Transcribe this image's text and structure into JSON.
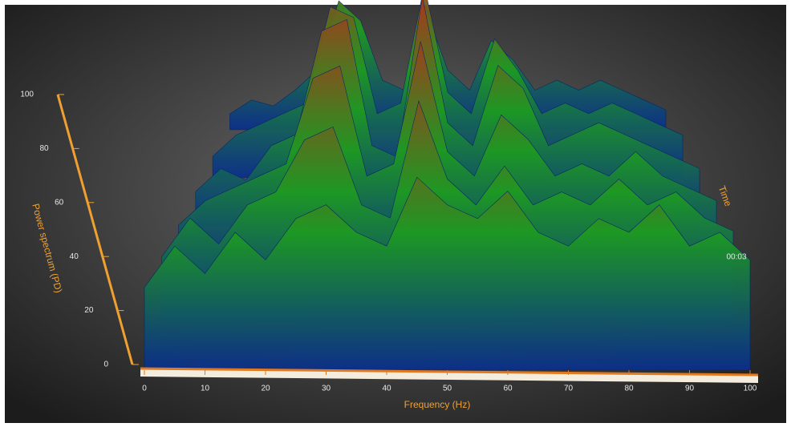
{
  "chart_data": {
    "type": "surface",
    "y_label": "Power spectrum (PD)",
    "x_label": "Frequency (Hz)",
    "z_label": "Time",
    "annotation": "00:03",
    "colormap": [
      "#0b2f8c",
      "#1e9a22",
      "#b0331c"
    ],
    "xlim": [
      0,
      100
    ],
    "xticks": [
      0,
      10,
      20,
      30,
      40,
      50,
      60,
      70,
      80,
      90,
      100
    ],
    "ylim": [
      0,
      100
    ],
    "yticks": [
      0,
      20,
      40,
      60,
      80,
      100
    ],
    "x": [
      0,
      5,
      10,
      15,
      20,
      25,
      30,
      35,
      40,
      45,
      50,
      55,
      60,
      65,
      70,
      75,
      80,
      85,
      90,
      95,
      100
    ],
    "series": [
      {
        "values": [
          30,
          45,
          35,
          50,
          40,
          55,
          60,
          50,
          45,
          70,
          60,
          55,
          65,
          50,
          45,
          55,
          50,
          60,
          45,
          50,
          40
        ]
      },
      {
        "values": [
          25,
          40,
          30,
          45,
          50,
          70,
          75,
          45,
          40,
          85,
          55,
          45,
          60,
          45,
          50,
          45,
          55,
          45,
          50,
          40,
          35
        ]
      },
      {
        "values": [
          20,
          30,
          35,
          40,
          45,
          80,
          85,
          40,
          45,
          95,
          50,
          40,
          65,
          55,
          40,
          45,
          40,
          50,
          40,
          35,
          30
        ]
      },
      {
        "values": [
          15,
          25,
          20,
          35,
          40,
          85,
          90,
          35,
          30,
          100,
          45,
          35,
          70,
          60,
          35,
          40,
          45,
          40,
          35,
          30,
          25
        ]
      },
      {
        "values": [
          10,
          20,
          25,
          30,
          35,
          80,
          75,
          30,
          35,
          90,
          40,
          30,
          65,
          50,
          30,
          35,
          30,
          35,
          30,
          25,
          20
        ]
      },
      {
        "values": [
          8,
          15,
          12,
          20,
          30,
          65,
          55,
          25,
          20,
          60,
          30,
          20,
          45,
          35,
          20,
          25,
          20,
          25,
          20,
          15,
          10
        ]
      }
    ]
  }
}
